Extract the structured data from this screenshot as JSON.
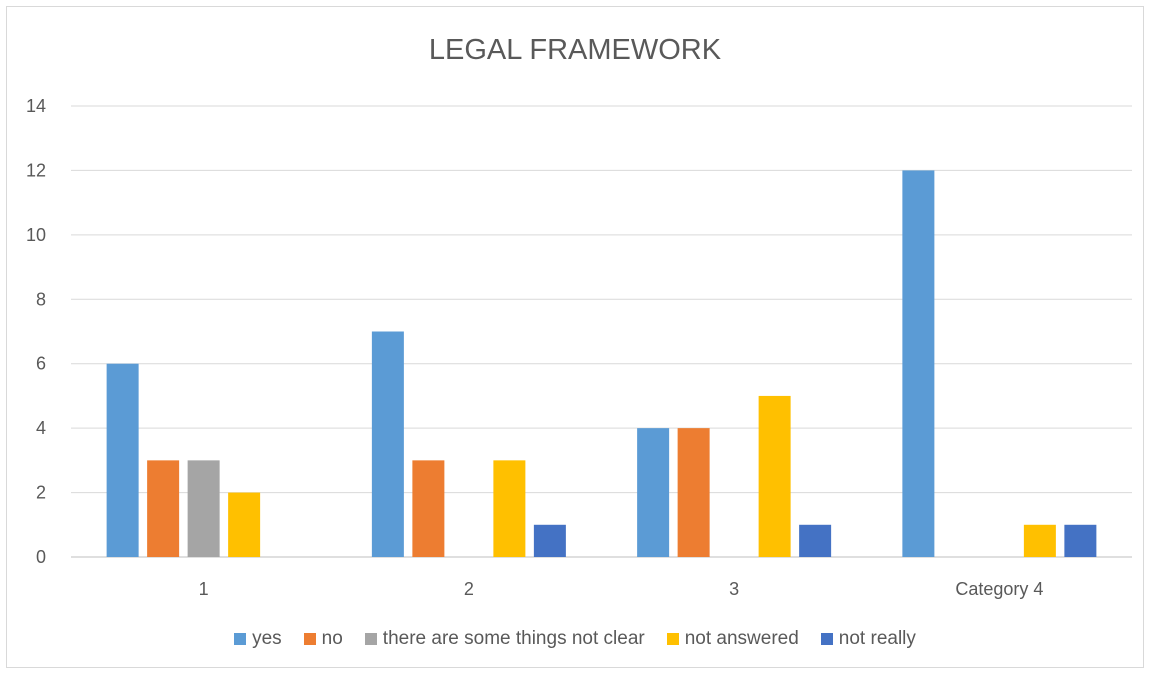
{
  "chart_data": {
    "type": "bar",
    "title": "LEGAL FRAMEWORK",
    "categories": [
      "1",
      "2",
      "3",
      "Category 4"
    ],
    "ylim": [
      0,
      14
    ],
    "yticks": [
      "0",
      "2",
      "4",
      "6",
      "8",
      "10",
      "12",
      "14"
    ],
    "grid": true,
    "legend_position": "bottom",
    "series": [
      {
        "name": "yes",
        "color": "#5b9bd5",
        "values": [
          6,
          7,
          4,
          12
        ]
      },
      {
        "name": "no",
        "color": "#ed7d31",
        "values": [
          3,
          3,
          4,
          0
        ]
      },
      {
        "name": "there are some things not clear",
        "color": "#a5a5a5",
        "values": [
          3,
          0,
          0,
          0
        ]
      },
      {
        "name": "not answered",
        "color": "#ffc000",
        "values": [
          2,
          3,
          5,
          1
        ]
      },
      {
        "name": "not really",
        "color": "#4472c4",
        "values": [
          0,
          1,
          1,
          1
        ]
      }
    ]
  }
}
